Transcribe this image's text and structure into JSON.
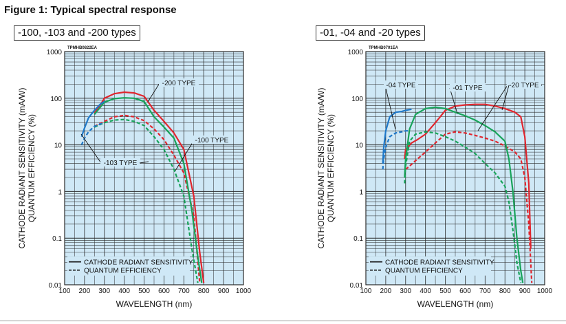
{
  "figure_title": "Figure 1: Typical spectral response",
  "colors": {
    "plot_background": "#cfe8f6",
    "grid": "#2a2a2a",
    "red": "#e0262e",
    "green": "#18a35a",
    "blue": "#1f78c8"
  },
  "chart_data": [
    {
      "type": "line",
      "panel_title": "-100, -103 and -200 types",
      "code": "TPMHB0822EA",
      "xlabel": "WAVELENGTH (nm)",
      "ylabel_line1": "CATHODE RADIANT SENSITIVITY (mA/W)",
      "ylabel_line2": "QUANTUM EFFICIENCY (%)",
      "xlim": [
        100,
        1000
      ],
      "ylim": [
        0.01,
        1000
      ],
      "yscale": "log",
      "grid": true,
      "x_ticks": [
        "100",
        "200",
        "300",
        "400",
        "500",
        "600",
        "700",
        "800",
        "900",
        "1000"
      ],
      "y_ticks": [
        "1000",
        "100",
        "10",
        "1",
        "0.1",
        "0.01"
      ],
      "legend_position": "bottom-left",
      "legend": [
        {
          "label": "CATHODE RADIANT SENSITIVITY",
          "style": "solid"
        },
        {
          "label": "QUANTUM EFFICIENCY",
          "style": "dashed"
        }
      ],
      "annotations": [
        "-200 TYPE",
        "-100 TYPE",
        "-103 TYPE"
      ],
      "series": [
        {
          "color": "red",
          "style": "solid",
          "x": [
            250,
            280,
            300,
            350,
            400,
            450,
            500,
            550,
            600,
            650,
            700,
            750,
            780,
            800
          ],
          "y": [
            48,
            72,
            100,
            125,
            135,
            130,
            110,
            55,
            32,
            18,
            8,
            0.8,
            0.05,
            0.011
          ]
        },
        {
          "color": "red",
          "style": "dashed",
          "x": [
            250,
            300,
            350,
            400,
            450,
            500,
            550,
            600,
            650,
            700,
            750,
            780
          ],
          "y": [
            25,
            32,
            40,
            43,
            40,
            33,
            22,
            13,
            6,
            2.5,
            0.3,
            0.011
          ]
        },
        {
          "color": "green",
          "style": "solid",
          "x": [
            250,
            300,
            350,
            400,
            450,
            500,
            550,
            600,
            650,
            700,
            740,
            770,
            790
          ],
          "y": [
            45,
            82,
            98,
            102,
            100,
            85,
            40,
            24,
            14,
            4,
            0.4,
            0.04,
            0.011
          ]
        },
        {
          "color": "green",
          "style": "dashed",
          "x": [
            250,
            300,
            350,
            400,
            450,
            500,
            550,
            600,
            650,
            700,
            740,
            770
          ],
          "y": [
            24,
            30,
            34,
            35,
            32,
            26,
            15,
            8,
            3,
            0.8,
            0.06,
            0.011
          ]
        },
        {
          "color": "blue",
          "style": "solid",
          "x": [
            185,
            200,
            220,
            250,
            280,
            300
          ],
          "y": [
            15,
            23,
            38,
            55,
            75,
            85
          ]
        },
        {
          "color": "blue",
          "style": "dashed",
          "x": [
            185,
            200,
            220,
            250,
            270,
            290
          ],
          "y": [
            10,
            14,
            19,
            25,
            27,
            29
          ]
        }
      ]
    },
    {
      "type": "line",
      "panel_title": "-01, -04 and -20 types",
      "code": "TPMHB0701EA",
      "xlabel": "WAVELENGTH (nm)",
      "ylabel_line1": "CATHODE RADIANT SENSITIVITY (mA/W)",
      "ylabel_line2": "QUANTUM EFFICIENCY (%)",
      "xlim": [
        100,
        1000
      ],
      "ylim": [
        0.01,
        1000
      ],
      "yscale": "log",
      "grid": true,
      "x_ticks": [
        "100",
        "200",
        "300",
        "400",
        "500",
        "600",
        "700",
        "800",
        "900",
        "1000"
      ],
      "y_ticks": [
        "1000",
        "100",
        "10",
        "1",
        "0.1",
        "0.01"
      ],
      "legend_position": "bottom-left",
      "legend": [
        {
          "label": "CATHODE RADIANT SENSITIVITY",
          "style": "solid"
        },
        {
          "label": "QUANTUM EFFICIENCY",
          "style": "dashed"
        }
      ],
      "annotations": [
        "-04 TYPE",
        "-01 TYPE",
        "-20 TYPE"
      ],
      "series": [
        {
          "color": "red",
          "style": "solid",
          "x": [
            295,
            300,
            330,
            360,
            400,
            450,
            500,
            550,
            600,
            650,
            700,
            750,
            800,
            850,
            880,
            900,
            920,
            930
          ],
          "y": [
            5,
            8,
            11,
            13,
            17,
            30,
            55,
            68,
            72,
            74,
            74,
            68,
            60,
            50,
            40,
            15,
            1.5,
            0.06
          ]
        },
        {
          "color": "red",
          "style": "dashed",
          "x": [
            300,
            320,
            360,
            400,
            450,
            500,
            550,
            600,
            650,
            700,
            750,
            800,
            850,
            880,
            900,
            920,
            935
          ],
          "y": [
            3,
            3.5,
            5,
            7,
            11,
            17,
            19,
            18,
            16,
            14,
            12,
            9.5,
            7,
            5,
            2,
            0.2,
            0.011
          ]
        },
        {
          "color": "green",
          "style": "solid",
          "x": [
            295,
            300,
            320,
            350,
            400,
            450,
            500,
            550,
            600,
            650,
            700,
            750,
            800,
            820,
            840,
            860,
            880,
            890
          ],
          "y": [
            2,
            5,
            22,
            45,
            60,
            64,
            60,
            50,
            42,
            34,
            26,
            19,
            12,
            5,
            1,
            0.1,
            0.02,
            0.011
          ]
        },
        {
          "color": "green",
          "style": "dashed",
          "x": [
            295,
            300,
            320,
            350,
            400,
            450,
            500,
            550,
            600,
            650,
            700,
            750,
            800,
            820,
            840,
            860,
            880
          ],
          "y": [
            1.5,
            3.5,
            12,
            17,
            19,
            18,
            15,
            12,
            9,
            6.5,
            4,
            2.5,
            1.3,
            0.6,
            0.15,
            0.03,
            0.011
          ]
        },
        {
          "color": "blue",
          "style": "solid",
          "x": [
            185,
            190,
            200,
            220,
            250,
            280,
            300,
            330
          ],
          "y": [
            4,
            9,
            20,
            40,
            50,
            52,
            55,
            58
          ]
        },
        {
          "color": "blue",
          "style": "dashed",
          "x": [
            185,
            190,
            200,
            220,
            250,
            280,
            300,
            320
          ],
          "y": [
            3,
            5,
            9,
            15,
            18,
            19,
            20,
            20
          ]
        }
      ]
    }
  ]
}
